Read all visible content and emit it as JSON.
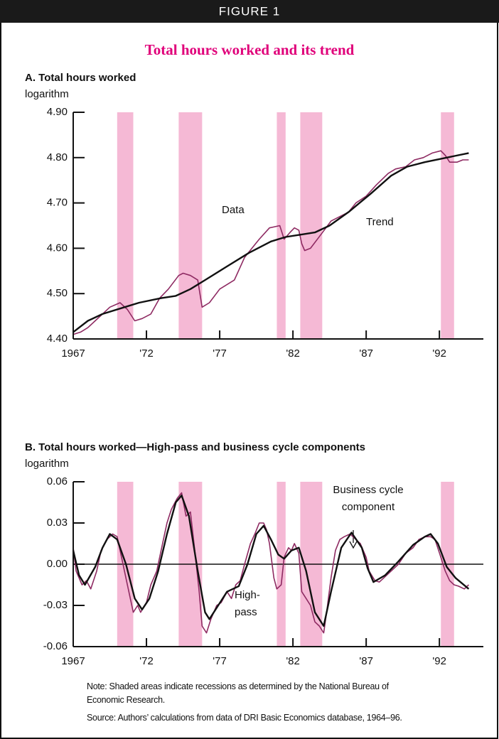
{
  "header": "FIGURE 1",
  "title": "Total hours worked and its trend",
  "notes": [
    "Note: Shaded areas indicate recessions as determined by the National Bureau of Economic Research.",
    "Source: Authors’ calculations from data of DRI Basic Economics database, 1964–96."
  ],
  "chart_data": [
    {
      "type": "line",
      "title": "A. Total hours worked",
      "ylabel": "logarithm",
      "xlim": [
        1967,
        1995
      ],
      "ylim": [
        4.4,
        4.9
      ],
      "xticks": [
        1967,
        {
          "value": 1972,
          "label": "'72"
        },
        {
          "value": 1977,
          "label": "'77"
        },
        {
          "value": 1982,
          "label": "'82"
        },
        {
          "value": 1987,
          "label": "'87"
        },
        {
          "value": 1992,
          "label": "'92"
        }
      ],
      "yticks": [
        {
          "value": 4.4,
          "label": "4.40"
        },
        {
          "value": 4.5,
          "label": "4.50"
        },
        {
          "value": 4.6,
          "label": "4.60"
        },
        {
          "value": 4.7,
          "label": "4.70"
        },
        {
          "value": 4.8,
          "label": "4.80"
        },
        {
          "value": 4.9,
          "label": "4.90"
        }
      ],
      "shade_color": "#f5b9d5",
      "recessions": [
        [
          1970.0,
          1971.1
        ],
        [
          1974.2,
          1975.8
        ],
        [
          1980.9,
          1981.5
        ],
        [
          1982.5,
          1984.0
        ],
        [
          1992.1,
          1993.0
        ]
      ],
      "series": [
        {
          "name": "Data",
          "color": "#8e2a62",
          "x": [
            1967.0,
            1967.5,
            1968.0,
            1968.5,
            1969.0,
            1969.5,
            1970.2,
            1970.7,
            1971.2,
            1971.7,
            1972.3,
            1972.9,
            1973.5,
            1974.2,
            1974.5,
            1975.0,
            1975.5,
            1975.8,
            1976.3,
            1977.0,
            1977.5,
            1978.0,
            1978.7,
            1979.2,
            1979.7,
            1980.4,
            1981.1,
            1981.4,
            1981.8,
            1982.1,
            1982.4,
            1982.6,
            1982.8,
            1983.2,
            1983.9,
            1984.6,
            1985.8,
            1986.3,
            1987.0,
            1987.7,
            1988.5,
            1989.0,
            1989.7,
            1990.3,
            1990.9,
            1991.5,
            1992.1,
            1992.4,
            1992.7,
            1993.2,
            1993.6,
            1994.0
          ],
          "values": [
            4.41,
            4.415,
            4.425,
            4.44,
            4.455,
            4.47,
            4.48,
            4.465,
            4.44,
            4.445,
            4.455,
            4.49,
            4.51,
            4.54,
            4.545,
            4.54,
            4.53,
            4.47,
            4.48,
            4.51,
            4.52,
            4.53,
            4.58,
            4.6,
            4.62,
            4.645,
            4.65,
            4.62,
            4.635,
            4.645,
            4.64,
            4.61,
            4.595,
            4.6,
            4.63,
            4.66,
            4.68,
            4.7,
            4.715,
            4.74,
            4.765,
            4.775,
            4.78,
            4.795,
            4.8,
            4.81,
            4.815,
            4.805,
            4.79,
            4.79,
            4.795,
            4.795
          ]
        },
        {
          "name": "Trend",
          "color": "#111111",
          "x": [
            1967.0,
            1968.0,
            1969.0,
            1970.5,
            1971.5,
            1973.0,
            1974.0,
            1975.0,
            1976.0,
            1977.5,
            1979.0,
            1980.5,
            1981.5,
            1982.5,
            1983.5,
            1984.5,
            1985.8,
            1987.3,
            1988.7,
            1989.8,
            1991.0,
            1992.5,
            1994.0
          ],
          "values": [
            4.415,
            4.44,
            4.455,
            4.47,
            4.48,
            4.49,
            4.495,
            4.51,
            4.53,
            4.56,
            4.59,
            4.615,
            4.625,
            4.63,
            4.635,
            4.65,
            4.68,
            4.72,
            4.76,
            4.78,
            4.79,
            4.8,
            4.81
          ]
        }
      ]
    },
    {
      "type": "line",
      "title": "B. Total hours worked—High-pass and business cycle components",
      "ylabel": "logarithm",
      "xlim": [
        1967,
        1995
      ],
      "ylim": [
        -0.06,
        0.06
      ],
      "xticks": [
        1967,
        {
          "value": 1972,
          "label": "'72"
        },
        {
          "value": 1977,
          "label": "'77"
        },
        {
          "value": 1982,
          "label": "'82"
        },
        {
          "value": 1987,
          "label": "'87"
        },
        {
          "value": 1992,
          "label": "'92"
        }
      ],
      "yticks": [
        -0.06,
        -0.03,
        {
          "value": 0,
          "label": "0.00"
        },
        0.03,
        0.06
      ],
      "zero_line": true,
      "shade_color": "#f5b9d5",
      "recessions": [
        [
          1970.0,
          1971.1
        ],
        [
          1974.2,
          1975.8
        ],
        [
          1980.9,
          1981.5
        ],
        [
          1982.5,
          1984.0
        ],
        [
          1992.1,
          1993.0
        ]
      ],
      "series": [
        {
          "name": "High-pass",
          "color": "#8e2a62",
          "x": [
            1967.0,
            1967.2,
            1967.6,
            1967.9,
            1968.2,
            1968.6,
            1968.9,
            1969.3,
            1969.7,
            1970.0,
            1970.3,
            1970.7,
            1971.1,
            1971.4,
            1971.6,
            1972.0,
            1972.3,
            1972.7,
            1973.1,
            1973.4,
            1973.7,
            1974.1,
            1974.4,
            1974.7,
            1975.0,
            1975.3,
            1975.6,
            1975.8,
            1976.1,
            1976.4,
            1976.8,
            1977.1,
            1977.5,
            1977.8,
            1978.1,
            1978.4,
            1978.7,
            1979.1,
            1979.4,
            1979.7,
            1980.0,
            1980.2,
            1980.4,
            1980.7,
            1980.9,
            1981.2,
            1981.4,
            1981.7,
            1981.9,
            1982.1,
            1982.4,
            1982.6,
            1982.9,
            1983.2,
            1983.5,
            1983.8,
            1984.1,
            1984.3,
            1984.6,
            1984.9,
            1985.2,
            1985.5,
            1985.9,
            1986.3,
            1986.6,
            1987.0,
            1987.2,
            1987.6,
            1987.9,
            1988.2,
            1988.7,
            1989.2,
            1989.7,
            1990.2,
            1990.6,
            1991.0,
            1991.4,
            1991.7,
            1992.1,
            1992.4,
            1992.7,
            1993.0,
            1993.3,
            1993.7,
            1994.0
          ],
          "values": [
            0.012,
            -0.005,
            -0.015,
            -0.012,
            -0.018,
            -0.005,
            0.01,
            0.018,
            0.022,
            0.02,
            0.005,
            -0.015,
            -0.035,
            -0.03,
            -0.035,
            -0.028,
            -0.015,
            -0.005,
            0.015,
            0.03,
            0.04,
            0.048,
            0.052,
            0.035,
            0.038,
            0.01,
            -0.02,
            -0.045,
            -0.05,
            -0.04,
            -0.03,
            -0.028,
            -0.02,
            -0.025,
            -0.015,
            -0.012,
            0.0,
            0.015,
            0.022,
            0.03,
            0.03,
            0.025,
            0.015,
            -0.01,
            -0.018,
            -0.015,
            0.005,
            0.012,
            0.01,
            0.015,
            0.008,
            -0.02,
            -0.025,
            -0.03,
            -0.042,
            -0.045,
            -0.05,
            -0.035,
            -0.01,
            0.01,
            0.018,
            0.02,
            0.022,
            0.018,
            0.015,
            0.005,
            -0.005,
            -0.012,
            -0.013,
            -0.01,
            -0.005,
            0.0,
            0.008,
            0.012,
            0.018,
            0.02,
            0.02,
            0.018,
            0.005,
            -0.005,
            -0.012,
            -0.015,
            -0.016,
            -0.018,
            -0.015
          ]
        },
        {
          "name": "Business cycle component",
          "color": "#111111",
          "x": [
            1967.0,
            1967.4,
            1967.8,
            1968.5,
            1969.0,
            1969.5,
            1970.0,
            1970.6,
            1971.2,
            1971.7,
            1972.2,
            1972.8,
            1973.4,
            1974.0,
            1974.4,
            1974.9,
            1975.5,
            1976.0,
            1976.3,
            1976.9,
            1977.5,
            1978.3,
            1978.9,
            1979.5,
            1980.0,
            1980.5,
            1981.0,
            1981.4,
            1981.9,
            1982.4,
            1982.9,
            1983.5,
            1984.1,
            1984.6,
            1985.3,
            1986.0,
            1986.7,
            1987.1,
            1987.5,
            1988.3,
            1989.2,
            1990.2,
            1991.0,
            1991.4,
            1991.9,
            1992.5,
            1993.1,
            1994.0
          ],
          "values": [
            0.01,
            -0.008,
            -0.015,
            -0.002,
            0.012,
            0.022,
            0.018,
            0.0,
            -0.025,
            -0.033,
            -0.025,
            -0.005,
            0.022,
            0.045,
            0.05,
            0.035,
            -0.005,
            -0.035,
            -0.04,
            -0.03,
            -0.02,
            -0.016,
            0.0,
            0.022,
            0.028,
            0.018,
            0.007,
            0.004,
            0.01,
            0.012,
            -0.005,
            -0.035,
            -0.045,
            -0.02,
            0.012,
            0.023,
            0.012,
            -0.003,
            -0.013,
            -0.008,
            0.002,
            0.014,
            0.02,
            0.022,
            0.015,
            -0.002,
            -0.01,
            -0.018
          ]
        }
      ]
    }
  ]
}
